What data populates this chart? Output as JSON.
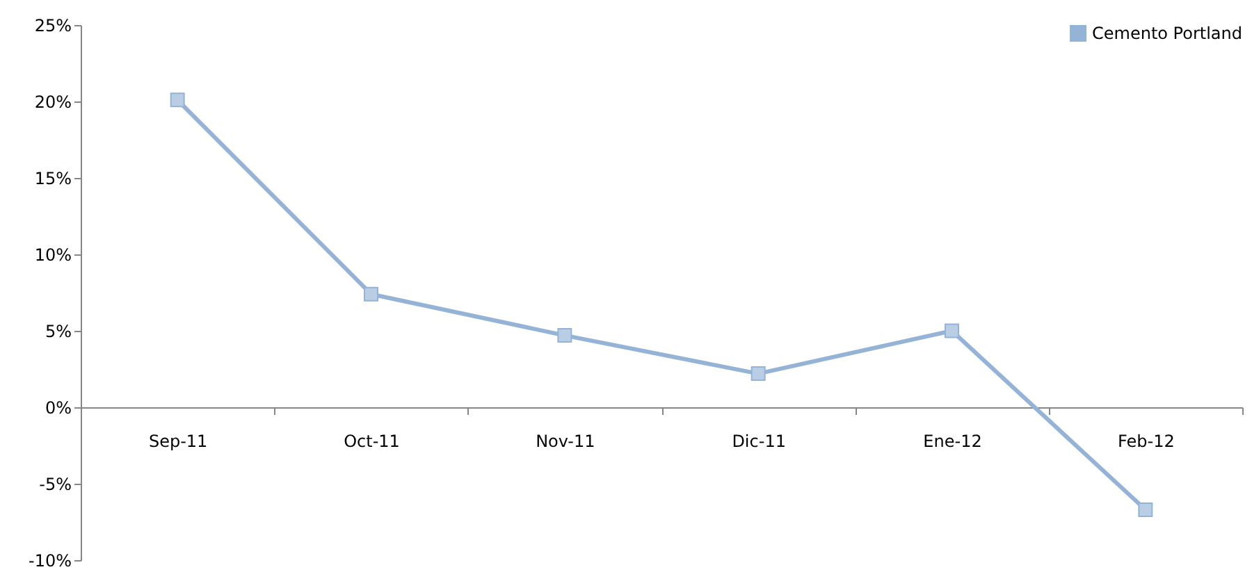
{
  "chart_data": {
    "type": "line",
    "categories": [
      "Sep-11",
      "Oct-11",
      "Nov-11",
      "Dic-11",
      "Ene-12",
      "Feb-12"
    ],
    "series": [
      {
        "name": "Cemento Portland",
        "color": "#95b3d7",
        "values": [
          20.1,
          7.4,
          4.7,
          2.2,
          5.0,
          -6.7
        ]
      }
    ],
    "ylim": [
      -10,
      25
    ],
    "yticks": [
      {
        "value": -10,
        "label": "-10%"
      },
      {
        "value": -5,
        "label": "-5%"
      },
      {
        "value": 0,
        "label": "0%"
      },
      {
        "value": 5,
        "label": "5%"
      },
      {
        "value": 10,
        "label": "10%"
      },
      {
        "value": 15,
        "label": "15%"
      },
      {
        "value": 20,
        "label": "20%"
      },
      {
        "value": 25,
        "label": "25%"
      }
    ],
    "legend": "top right",
    "marker": "square",
    "line_style": "solid"
  }
}
